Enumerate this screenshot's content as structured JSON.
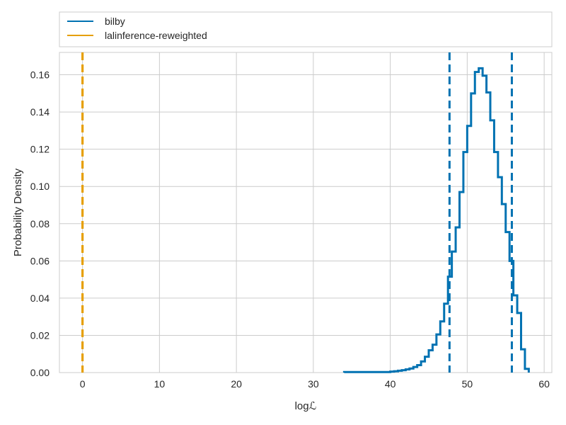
{
  "chart_data": {
    "type": "histogram",
    "xlabel": "logℒ",
    "ylabel": "Probability Density",
    "xlim": [
      -3,
      61
    ],
    "ylim": [
      0,
      0.172
    ],
    "xticks": [
      0,
      10,
      20,
      30,
      40,
      50,
      60
    ],
    "yticks": [
      0.0,
      0.02,
      0.04,
      0.06,
      0.08,
      0.1,
      0.12,
      0.14,
      0.16
    ],
    "xtick_labels": [
      "0",
      "10",
      "20",
      "30",
      "40",
      "50",
      "60"
    ],
    "ytick_labels": [
      "0.00",
      "0.02",
      "0.04",
      "0.06",
      "0.08",
      "0.10",
      "0.12",
      "0.14",
      "0.16"
    ],
    "grid": true,
    "legend_placement": "top, above plot",
    "series": [
      {
        "name": "bilby",
        "color": "#0072b2",
        "style": "step",
        "bin_edges": [
          34.0,
          40.0,
          40.5,
          41.0,
          41.5,
          42.0,
          42.5,
          43.0,
          43.5,
          44.0,
          44.5,
          45.0,
          45.5,
          46.0,
          46.5,
          47.0,
          47.5,
          48.0,
          48.5,
          49.0,
          49.5,
          50.0,
          50.5,
          51.0,
          51.5,
          52.0,
          52.5,
          53.0,
          53.5,
          54.0,
          54.5,
          55.0,
          55.5,
          56.0,
          56.5,
          57.0,
          57.5,
          58.0
        ],
        "densities": [
          0.0003,
          0.0005,
          0.0007,
          0.001,
          0.0013,
          0.0017,
          0.0022,
          0.003,
          0.004,
          0.006,
          0.0085,
          0.012,
          0.015,
          0.0205,
          0.0275,
          0.037,
          0.0515,
          0.065,
          0.078,
          0.097,
          0.1185,
          0.1325,
          0.15,
          0.1615,
          0.1635,
          0.1595,
          0.1505,
          0.1355,
          0.1185,
          0.105,
          0.0905,
          0.0755,
          0.06,
          0.0415,
          0.032,
          0.0125,
          0.002
        ],
        "quantile_lines": [
          47.7,
          55.8
        ]
      },
      {
        "name": "lalinference-reweighted",
        "color": "#e69f00",
        "style": "step",
        "bin_edges": [],
        "densities": [],
        "quantile_lines": [
          0.0,
          0.0
        ]
      }
    ]
  }
}
